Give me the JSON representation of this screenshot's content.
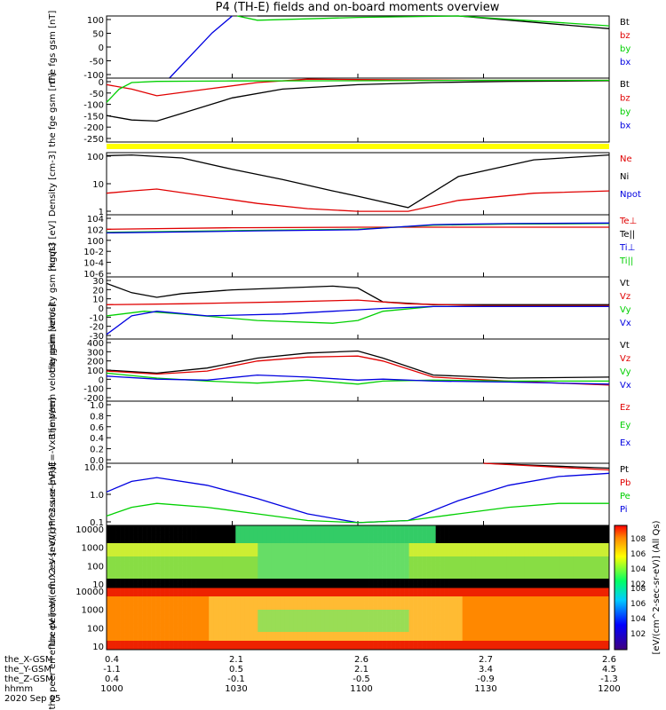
{
  "title": "P4 (TH-E) fields and on-board moments overview",
  "date_label": "2020 Sep 05",
  "colors": {
    "black": "#000000",
    "red": "#e00000",
    "green": "#00d000",
    "blue": "#0000e0",
    "yellow": "#ffff00"
  },
  "ephemeris": {
    "rows": [
      {
        "label": "the_X-GSM",
        "values": [
          "0.4",
          "2.1",
          "2.6",
          "2.7",
          "2.6"
        ]
      },
      {
        "label": "the_Y-GSM",
        "values": [
          "-1.1",
          "0.5",
          "2.1",
          "3.4",
          "4.5"
        ]
      },
      {
        "label": "the_Z-GSM",
        "values": [
          "0.4",
          "-0.1",
          "-0.5",
          "-0.9",
          "-1.3"
        ]
      },
      {
        "label": "hhmm",
        "values": [
          "1000",
          "1030",
          "1100",
          "1130",
          "1200"
        ]
      }
    ]
  },
  "colorbar": {
    "label": "[eV/(cm^2-sec-sr-eV)] (All Qs)",
    "ticks_top": [
      "10^8",
      "10^6",
      "10^4",
      "10^2"
    ],
    "ticks_bottom": [
      "10^8",
      "10^6",
      "10^4",
      "10^2"
    ]
  },
  "chart_data": [
    {
      "type": "line",
      "ylabel": "the fgs gsm [nT]",
      "yticks": [
        "100",
        "50",
        "0",
        "-50",
        "-100"
      ],
      "ylim": [
        -100,
        120
      ],
      "legend": [
        "Bt",
        "bz",
        "by",
        "bx"
      ],
      "series": [
        {
          "name": "Bt",
          "color": "#000000",
          "x": [
            10.0,
            10.52,
            10.6,
            11.0,
            11.4,
            12.0
          ],
          "y": [
            null,
            null,
            120,
            120,
            120,
            75
          ]
        },
        {
          "name": "by",
          "color": "#00d000",
          "x": [
            10.0,
            10.52,
            10.6,
            11.0,
            11.4,
            12.0
          ],
          "y": [
            null,
            120,
            105,
            115,
            120,
            85
          ]
        },
        {
          "name": "bx",
          "color": "#0000e0",
          "x": [
            10.0,
            10.25,
            10.42,
            10.5,
            10.6,
            12.0
          ],
          "y": [
            null,
            -100,
            60,
            120,
            null,
            70
          ]
        }
      ]
    },
    {
      "type": "line",
      "ylabel": "the fge gsm [nT]",
      "yticks": [
        "0",
        "-50",
        "-100",
        "-150",
        "-200",
        "-250"
      ],
      "ylim": [
        -280,
        10
      ],
      "legend": [
        "Bt",
        "bz",
        "by",
        "bx"
      ],
      "series": [
        {
          "name": "bx",
          "color": "#000000",
          "x": [
            10.0,
            10.1,
            10.2,
            10.3,
            10.5,
            10.7,
            11.0,
            11.3,
            11.6,
            12.0
          ],
          "y": [
            -160,
            -180,
            -185,
            -150,
            -80,
            -40,
            -20,
            -10,
            -5,
            -2
          ]
        },
        {
          "name": "bz",
          "color": "#e00000",
          "x": [
            10.0,
            10.1,
            10.2,
            10.4,
            10.6,
            10.8,
            11.0,
            11.5,
            12.0
          ],
          "y": [
            -20,
            -40,
            -70,
            -40,
            -10,
            5,
            3,
            0,
            0
          ]
        },
        {
          "name": "by",
          "color": "#00d000",
          "x": [
            10.0,
            10.05,
            10.1,
            10.2,
            10.5,
            11.0,
            11.5,
            12.0
          ],
          "y": [
            -100,
            -40,
            -10,
            -5,
            -3,
            -2,
            0,
            0
          ]
        }
      ]
    },
    {
      "type": "line",
      "ylabel": "Density [cm-3]",
      "yticks": [
        "100",
        "10",
        "1"
      ],
      "ylim": [
        0.5,
        200
      ],
      "log": true,
      "legend": [
        "Ne",
        "Ni",
        "Npot"
      ],
      "series": [
        {
          "name": "Ne",
          "color": "#e00000",
          "x": [
            10.0,
            10.1,
            10.2,
            10.4,
            10.6,
            10.8,
            11.0,
            11.2,
            11.4,
            11.7,
            12.0
          ],
          "y": [
            4,
            5,
            6,
            3,
            1.5,
            0.9,
            0.7,
            0.7,
            2,
            4,
            5
          ]
        },
        {
          "name": "Ni",
          "color": "#000000",
          "x": [
            10.0,
            10.1,
            10.3,
            10.5,
            10.7,
            10.9,
            11.0,
            11.2,
            11.4,
            11.7,
            12.0
          ],
          "y": [
            150,
            160,
            120,
            40,
            15,
            5,
            3,
            1,
            20,
            100,
            160
          ]
        }
      ]
    },
    {
      "type": "line",
      "ylabel": "mgqt3 [eV]",
      "yticks": [
        "10^4",
        "10^2",
        "10^0",
        "10^-2",
        "10^-4",
        "10^-6"
      ],
      "ylim": [
        -7,
        5
      ],
      "legend": [
        "Te⊥",
        "Te||",
        "Ti⊥",
        "Ti||"
      ],
      "series": [
        {
          "name": "Te⊥",
          "color": "#e00000",
          "x": [
            10.0,
            10.5,
            11.0,
            11.5,
            12.0
          ],
          "y": [
            2.2,
            2.5,
            2.6,
            2.6,
            2.6
          ]
        },
        {
          "name": "Ti||",
          "color": "#00d000",
          "x": [
            10.0,
            10.3,
            10.6,
            11.0,
            11.3,
            11.6,
            12.0
          ],
          "y": [
            1.6,
            1.8,
            2.0,
            2.2,
            3.0,
            3.2,
            3.3
          ]
        },
        {
          "name": "Ti⊥",
          "color": "#0000e0",
          "x": [
            10.0,
            10.3,
            10.6,
            11.0,
            11.3,
            11.6,
            12.0
          ],
          "y": [
            1.5,
            1.7,
            1.9,
            2.1,
            3.1,
            3.3,
            3.4
          ]
        }
      ]
    },
    {
      "type": "line",
      "ylabel": "the peim velocity gsm [km/s]",
      "yticks": [
        "30",
        "20",
        "10",
        "0",
        "-10",
        "-20",
        "-30"
      ],
      "ylim": [
        -35,
        32
      ],
      "legend": [
        "Vt",
        "Vz",
        "Vy",
        "Vx"
      ],
      "series": [
        {
          "name": "Vt",
          "color": "#000000",
          "x": [
            10.0,
            10.1,
            10.2,
            10.3,
            10.5,
            10.7,
            10.9,
            11.0,
            11.1,
            11.3,
            12.0
          ],
          "y": [
            25,
            15,
            10,
            14,
            18,
            20,
            22,
            20,
            5,
            2,
            2
          ]
        },
        {
          "name": "Vz",
          "color": "#e00000",
          "x": [
            10.0,
            10.3,
            10.7,
            11.0,
            11.2,
            11.5,
            12.0
          ],
          "y": [
            2,
            3,
            5,
            7,
            3,
            1,
            1
          ]
        },
        {
          "name": "Vy",
          "color": "#00d000",
          "x": [
            10.0,
            10.15,
            10.3,
            10.6,
            10.9,
            11.0,
            11.1,
            11.3,
            12.0
          ],
          "y": [
            -10,
            -5,
            -8,
            -15,
            -18,
            -15,
            -5,
            0,
            0
          ]
        },
        {
          "name": "Vx",
          "color": "#0000e0",
          "x": [
            10.0,
            10.1,
            10.2,
            10.4,
            10.7,
            10.9,
            11.1,
            11.3,
            12.0
          ],
          "y": [
            -30,
            -10,
            -5,
            -10,
            -8,
            -5,
            -2,
            0,
            0
          ]
        }
      ]
    },
    {
      "type": "line",
      "ylabel": "the peem velocity gsm [km/s]",
      "yticks": [
        "400",
        "300",
        "200",
        "100",
        "0",
        "-100",
        "-200"
      ],
      "ylim": [
        -200,
        420
      ],
      "legend": [
        "Vt",
        "Vz",
        "Vy",
        "Vx"
      ],
      "series": [
        {
          "name": "Vt",
          "color": "#000000",
          "x": [
            10.0,
            10.2,
            10.4,
            10.6,
            10.8,
            11.0,
            11.1,
            11.3,
            11.6,
            12.0
          ],
          "y": [
            110,
            80,
            130,
            230,
            280,
            300,
            230,
            60,
            30,
            40
          ]
        },
        {
          "name": "Vz",
          "color": "#e00000",
          "x": [
            10.0,
            10.2,
            10.4,
            10.6,
            10.8,
            11.0,
            11.1,
            11.3,
            11.6,
            12.0
          ],
          "y": [
            100,
            70,
            100,
            200,
            240,
            250,
            200,
            40,
            0,
            -40
          ]
        },
        {
          "name": "Vy",
          "color": "#00d000",
          "x": [
            10.0,
            10.2,
            10.4,
            10.6,
            10.8,
            11.0,
            11.1,
            11.3,
            11.6,
            12.0
          ],
          "y": [
            80,
            30,
            0,
            -20,
            10,
            -30,
            0,
            10,
            0,
            0
          ]
        },
        {
          "name": "Vx",
          "color": "#0000e0",
          "x": [
            10.0,
            10.2,
            10.4,
            10.6,
            10.8,
            11.0,
            11.1,
            11.3,
            11.6,
            12.0
          ],
          "y": [
            50,
            20,
            10,
            60,
            40,
            10,
            20,
            0,
            -10,
            -30
          ]
        }
      ]
    },
    {
      "type": "line",
      "ylabel": "E=-VxB [mV/m]",
      "yticks": [
        "1.0",
        "0.8",
        "0.6",
        "0.4",
        "0.2",
        "0.0"
      ],
      "ylim": [
        0,
        1.0
      ],
      "legend": [
        "Ez",
        "Ey",
        "Ex"
      ],
      "series": []
    },
    {
      "type": "line",
      "ylabel": "Pressure [nPa]",
      "yticks": [
        "10.0",
        "1.0",
        "0.1"
      ],
      "ylim": [
        0.03,
        20
      ],
      "log": true,
      "legend": [
        "Pt",
        "Pb",
        "Pe",
        "Pi"
      ],
      "series": [
        {
          "name": "Pi",
          "color": "#0000e0",
          "x": [
            10.0,
            10.1,
            10.2,
            10.4,
            10.6,
            10.8,
            11.0,
            11.2,
            11.4,
            11.6,
            11.8,
            12.0
          ],
          "y": [
            1.0,
            3,
            4.5,
            2,
            0.5,
            0.1,
            0.04,
            0.05,
            0.4,
            2,
            5,
            7
          ]
        },
        {
          "name": "Pe",
          "color": "#00d000",
          "x": [
            10.0,
            10.1,
            10.2,
            10.4,
            10.6,
            10.8,
            11.0,
            11.2,
            11.4,
            11.6,
            11.8,
            12.0
          ],
          "y": [
            0.08,
            0.2,
            0.3,
            0.2,
            0.1,
            0.05,
            0.04,
            0.05,
            0.1,
            0.2,
            0.3,
            0.3
          ]
        },
        {
          "name": "Pt",
          "color": "#000000",
          "x": [
            11.5,
            12.0
          ],
          "y": [
            20,
            12
          ]
        },
        {
          "name": "Pb",
          "color": "#e00000",
          "x": [
            11.5,
            12.0
          ],
          "y": [
            20,
            10
          ]
        }
      ]
    },
    {
      "type": "heatmap",
      "ylabel": "the peir en eflux eV [eV/(cm^2-s-sr-eV)]",
      "yticks": [
        "10000",
        "1000",
        "100",
        "10"
      ]
    },
    {
      "type": "heatmap",
      "ylabel": "the peer en eflux eV [eV/(cm^2-s-sr-eV)]",
      "yticks": [
        "10000",
        "1000",
        "100",
        "10"
      ]
    }
  ]
}
